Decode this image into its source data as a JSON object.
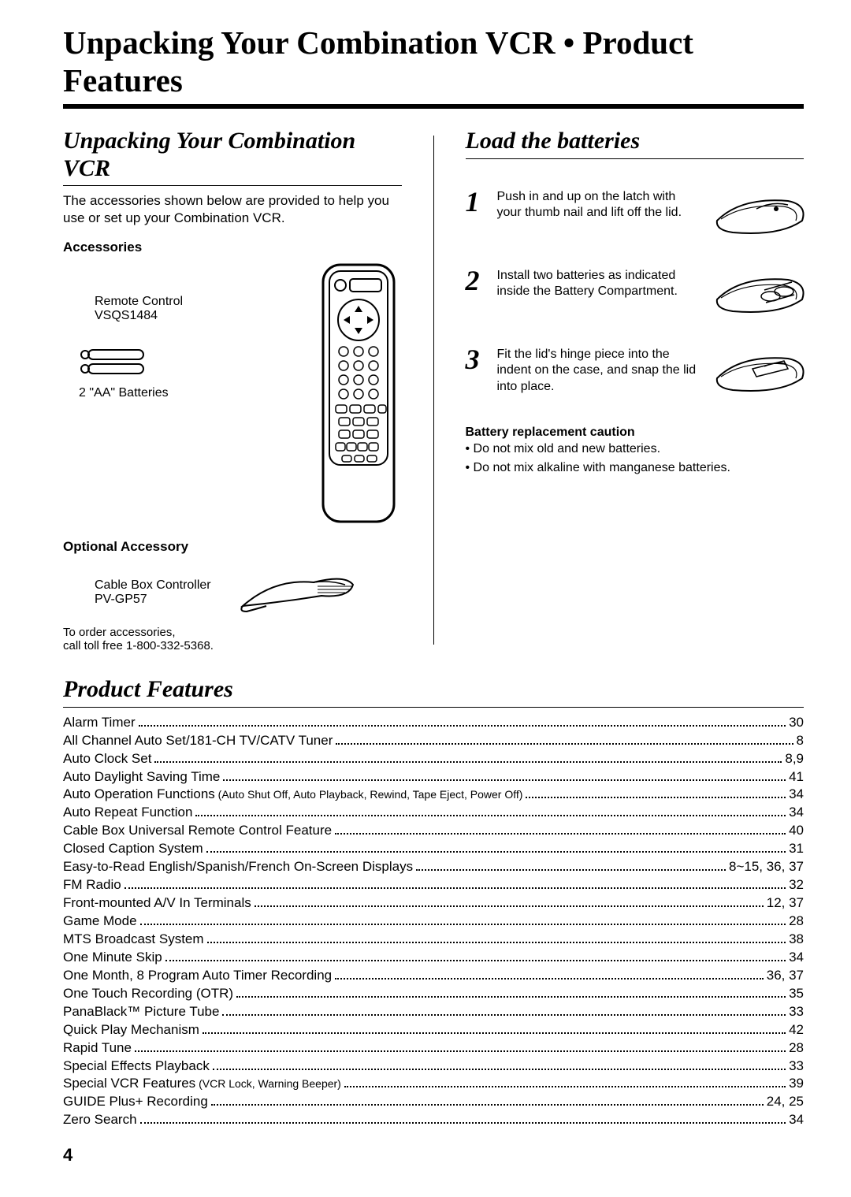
{
  "title": "Unpacking Your Combination VCR • Product Features",
  "left": {
    "heading": "Unpacking Your Combination VCR",
    "intro": "The accessories shown below are provided to help you use or set up your Combination VCR.",
    "accessories_label": "Accessories",
    "remote_label_l1": "Remote Control",
    "remote_label_l2": "VSQS1484",
    "batteries_label": "2 \"AA\" Batteries",
    "optional_label": "Optional Accessory",
    "cable_l1": "Cable Box Controller",
    "cable_l2": "PV-GP57",
    "order_l1": "To order accessories,",
    "order_l2": "call toll free 1-800-332-5368."
  },
  "right": {
    "heading": "Load the batteries",
    "steps": [
      {
        "num": "1",
        "text": "Push in and up on the latch with your thumb nail and lift off the lid."
      },
      {
        "num": "2",
        "text": "Install two batteries as indicated inside the Battery Compartment."
      },
      {
        "num": "3",
        "text": "Fit the lid's hinge piece into the indent on the case, and snap the lid into place."
      }
    ],
    "caution_head": "Battery replacement caution",
    "caution": [
      "Do not mix old and new batteries.",
      "Do not mix alkaline with manganese batteries."
    ]
  },
  "features": {
    "heading": "Product Features",
    "items": [
      {
        "label": "Alarm Timer",
        "page": "30"
      },
      {
        "label": "All Channel Auto Set/181-CH TV/CATV Tuner",
        "page": "8"
      },
      {
        "label": "Auto Clock Set",
        "page": "8,9"
      },
      {
        "label": "Auto Daylight Saving Time",
        "page": "41"
      },
      {
        "label": "Auto Operation Functions",
        "sub": " (Auto Shut Off, Auto Playback, Rewind, Tape Eject, Power Off)",
        "page": "34"
      },
      {
        "label": "Auto Repeat Function",
        "page": "34"
      },
      {
        "label": "Cable Box Universal Remote Control Feature",
        "page": "40"
      },
      {
        "label": "Closed Caption System",
        "page": "31"
      },
      {
        "label": "Easy-to-Read English/Spanish/French On-Screen Displays",
        "page": "8~15, 36, 37"
      },
      {
        "label": "FM Radio",
        "page": "32"
      },
      {
        "label": "Front-mounted A/V In Terminals",
        "page": "12, 37"
      },
      {
        "label": "Game Mode",
        "page": "28"
      },
      {
        "label": "MTS Broadcast System",
        "page": "38"
      },
      {
        "label": "One Minute Skip",
        "page": "34"
      },
      {
        "label": "One Month, 8 Program Auto Timer Recording",
        "page": "36, 37"
      },
      {
        "label": "One Touch Recording (OTR)",
        "page": "35"
      },
      {
        "label": "PanaBlack™ Picture Tube",
        "page": "33"
      },
      {
        "label": "Quick Play Mechanism",
        "page": "42"
      },
      {
        "label": "Rapid Tune",
        "page": "28"
      },
      {
        "label": "Special Effects Playback",
        "page": "33"
      },
      {
        "label": "Special VCR Features",
        "sub": " (VCR Lock, Warning Beeper)",
        "page": "39"
      },
      {
        "label": "GUIDE Plus+ Recording",
        "page": "24, 25"
      },
      {
        "label": "Zero Search",
        "page": "34"
      }
    ]
  },
  "page_number": "4",
  "colors": {
    "ink": "#000000",
    "paper": "#ffffff"
  }
}
